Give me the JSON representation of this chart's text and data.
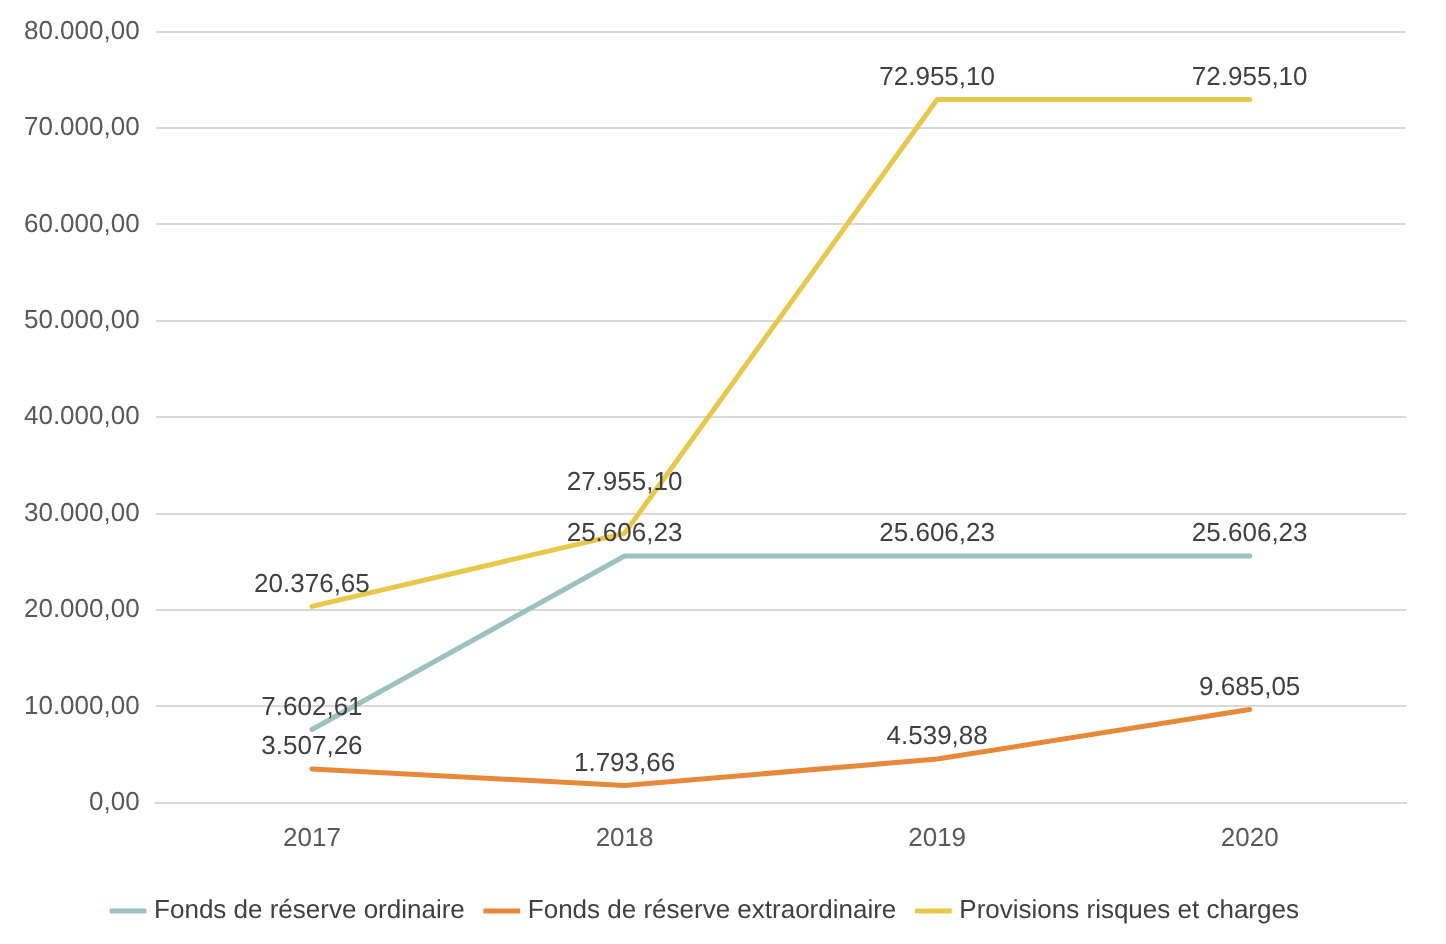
{
  "chart_data": {
    "type": "line",
    "categories": [
      "2017",
      "2018",
      "2019",
      "2020"
    ],
    "series": [
      {
        "name": "Fonds de réserve ordinaire",
        "color": "#9bc2c0",
        "values": [
          7602.61,
          25606.23,
          25606.23,
          25606.23
        ],
        "value_labels": [
          "7.602,61",
          "25.606,23",
          "25.606,23",
          "25.606,23"
        ]
      },
      {
        "name": "Fonds de réserve extraordinaire",
        "color": "#e8893a",
        "values": [
          3507.26,
          1793.66,
          4539.88,
          9685.05
        ],
        "value_labels": [
          "3.507,26",
          "1.793,66",
          "4.539,88",
          "9.685,05"
        ]
      },
      {
        "name": "Provisions risques et charges",
        "color": "#e8c84a",
        "values": [
          20376.65,
          27955.1,
          72955.1,
          72955.1
        ],
        "value_labels": [
          "20.376,65",
          "27.955,10",
          "72.955,10",
          "72.955,10"
        ]
      }
    ],
    "ylim": [
      0,
      80000
    ],
    "yticks": [
      {
        "value": 0,
        "label": "0,00"
      },
      {
        "value": 10000,
        "label": "10.000,00"
      },
      {
        "value": 20000,
        "label": "20.000,00"
      },
      {
        "value": 30000,
        "label": "30.000,00"
      },
      {
        "value": 40000,
        "label": "40.000,00"
      },
      {
        "value": 50000,
        "label": "50.000,00"
      },
      {
        "value": 60000,
        "label": "60.000,00"
      },
      {
        "value": 70000,
        "label": "70.000,00"
      },
      {
        "value": 80000,
        "label": "80.000,00"
      }
    ],
    "grid": "y",
    "legend": "bottom",
    "marker": "none",
    "line_style": "solid"
  }
}
